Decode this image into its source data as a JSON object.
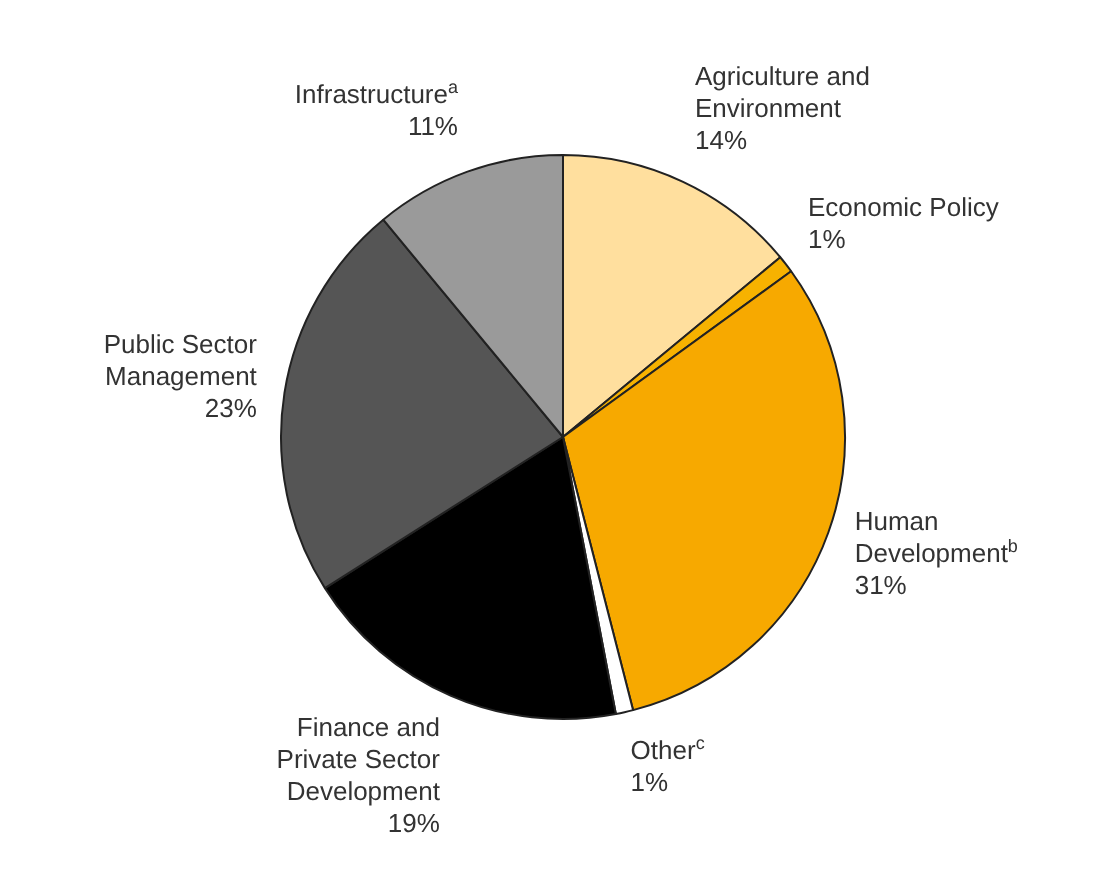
{
  "chart_data": {
    "type": "pie",
    "categories": [
      "Agriculture and Environment",
      "Economic Policy",
      "Human Development$^{b}$",
      "Other$^{c}$",
      "Finance and Private Sector Development",
      "Public Sector Management",
      "Infrastructure$^{a}$"
    ],
    "values": [
      14,
      1,
      31,
      1,
      19,
      23,
      11
    ],
    "value_labels": [
      "14%",
      "1%",
      "31%",
      "1%",
      "19%",
      "23%",
      "11%"
    ],
    "colors": [
      "#ffdf9e",
      "#f7b200",
      "#f7a900",
      "#ffffff",
      "#000000",
      "#555555",
      "#9a9a9a"
    ],
    "legend": false
  }
}
